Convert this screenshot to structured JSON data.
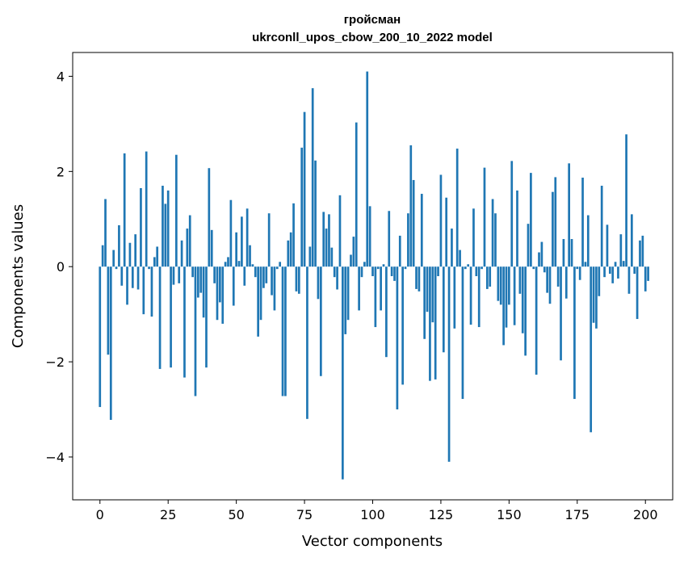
{
  "chart_data": {
    "type": "bar",
    "title_lines": [
      "гройсман",
      "ukrconll_upos_cbow_200_10_2022 model"
    ],
    "xlabel": "Vector components",
    "ylabel": "Components values",
    "xlim": [
      -10,
      210
    ],
    "ylim": [
      -4.9,
      4.5
    ],
    "xticks": [
      0,
      25,
      50,
      75,
      100,
      125,
      150,
      175,
      200
    ],
    "yticks": [
      -4,
      -2,
      0,
      2,
      4
    ],
    "ytick_labels": [
      "−4",
      "−2",
      "0",
      "2",
      "4"
    ],
    "bar_color": "#1f77b4",
    "grid": false,
    "values": [
      -2.95,
      0.45,
      1.42,
      -1.85,
      -3.22,
      0.35,
      -0.05,
      0.87,
      -0.4,
      2.38,
      -0.8,
      0.5,
      -0.45,
      0.68,
      -0.48,
      1.65,
      -1.0,
      2.42,
      -0.05,
      -1.05,
      0.2,
      0.42,
      -2.15,
      1.7,
      1.32,
      1.6,
      -2.12,
      -0.38,
      2.35,
      -0.35,
      0.55,
      -2.33,
      0.8,
      1.08,
      -0.22,
      -2.72,
      -0.65,
      -0.55,
      -1.07,
      -2.12,
      2.07,
      0.77,
      -0.35,
      -1.12,
      -0.75,
      -1.2,
      0.1,
      0.2,
      1.4,
      -0.82,
      0.72,
      0.12,
      1.05,
      -0.4,
      1.22,
      0.45,
      0.05,
      -0.22,
      -1.47,
      -1.12,
      -0.45,
      -0.35,
      1.12,
      -0.6,
      -0.92,
      -0.05,
      0.1,
      -2.72,
      -2.72,
      0.55,
      0.72,
      1.33,
      -0.52,
      -0.57,
      2.5,
      3.25,
      -3.2,
      0.42,
      3.75,
      2.23,
      -0.68,
      -2.3,
      1.15,
      0.8,
      1.1,
      0.4,
      -0.22,
      -0.48,
      1.5,
      -4.47,
      -1.42,
      -1.12,
      0.25,
      0.63,
      3.03,
      -0.92,
      -0.22,
      0.1,
      4.1,
      1.27,
      -0.2,
      -1.27,
      -0.05,
      -0.92,
      0.05,
      -1.9,
      1.17,
      -0.2,
      -0.3,
      -3.0,
      0.65,
      -2.48,
      -0.05,
      1.12,
      2.55,
      1.82,
      -0.47,
      -0.52,
      1.53,
      -1.52,
      -0.95,
      -2.4,
      -1.17,
      -2.37,
      -0.2,
      1.93,
      -1.8,
      1.45,
      -4.1,
      0.8,
      -1.3,
      2.48,
      0.35,
      -2.78,
      -0.05,
      0.05,
      -1.22,
      1.22,
      -0.2,
      -1.27,
      -0.05,
      2.08,
      -0.47,
      -0.42,
      1.42,
      1.12,
      -0.72,
      -0.8,
      -1.65,
      -1.28,
      -0.8,
      2.22,
      -1.23,
      1.6,
      -0.57,
      -1.4,
      -1.87,
      0.9,
      1.97,
      -0.05,
      -2.27,
      0.3,
      0.52,
      -0.12,
      -0.55,
      -0.78,
      1.57,
      1.88,
      -0.42,
      -1.97,
      0.58,
      -0.67,
      2.17,
      0.58,
      -2.78,
      -0.05,
      -0.28,
      1.87,
      0.1,
      1.08,
      -3.48,
      -1.18,
      -1.3,
      -0.62,
      1.7,
      -0.22,
      0.88,
      -0.15,
      -0.35,
      0.1,
      -0.25,
      0.68,
      0.12,
      2.78,
      -0.57,
      1.1,
      -0.15,
      -1.1,
      0.55,
      0.65,
      -0.52,
      -0.3
    ]
  }
}
